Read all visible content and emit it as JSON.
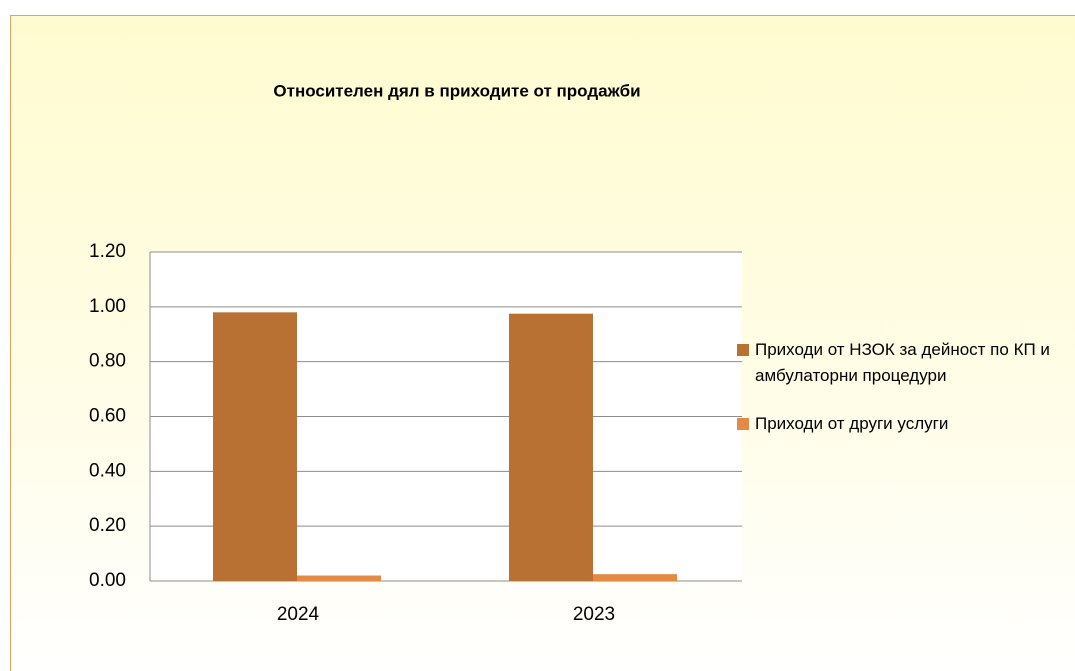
{
  "chart_data": {
    "type": "bar",
    "title": "Относителен дял в приходите от продажби",
    "categories": [
      "2024",
      "2023"
    ],
    "series": [
      {
        "name": "Приходи от НЗОК за дейност по КП и амбулаторни процедури",
        "color": "#b87033",
        "values": [
          0.98,
          0.975
        ]
      },
      {
        "name": "Приходи от други услуги",
        "color": "#e38b45",
        "values": [
          0.02,
          0.025
        ]
      }
    ],
    "ylim": [
      0,
      1.2
    ],
    "yticks": [
      {
        "value": 0,
        "label": "0.00"
      },
      {
        "value": 0.2,
        "label": "0.20"
      },
      {
        "value": 0.4,
        "label": "0.40"
      },
      {
        "value": 0.6,
        "label": "0.60"
      },
      {
        "value": 0.8,
        "label": "0.80"
      },
      {
        "value": 1,
        "label": "1.00"
      },
      {
        "value": 1.2,
        "label": "1.20"
      }
    ],
    "grid": true,
    "legend": "right"
  }
}
